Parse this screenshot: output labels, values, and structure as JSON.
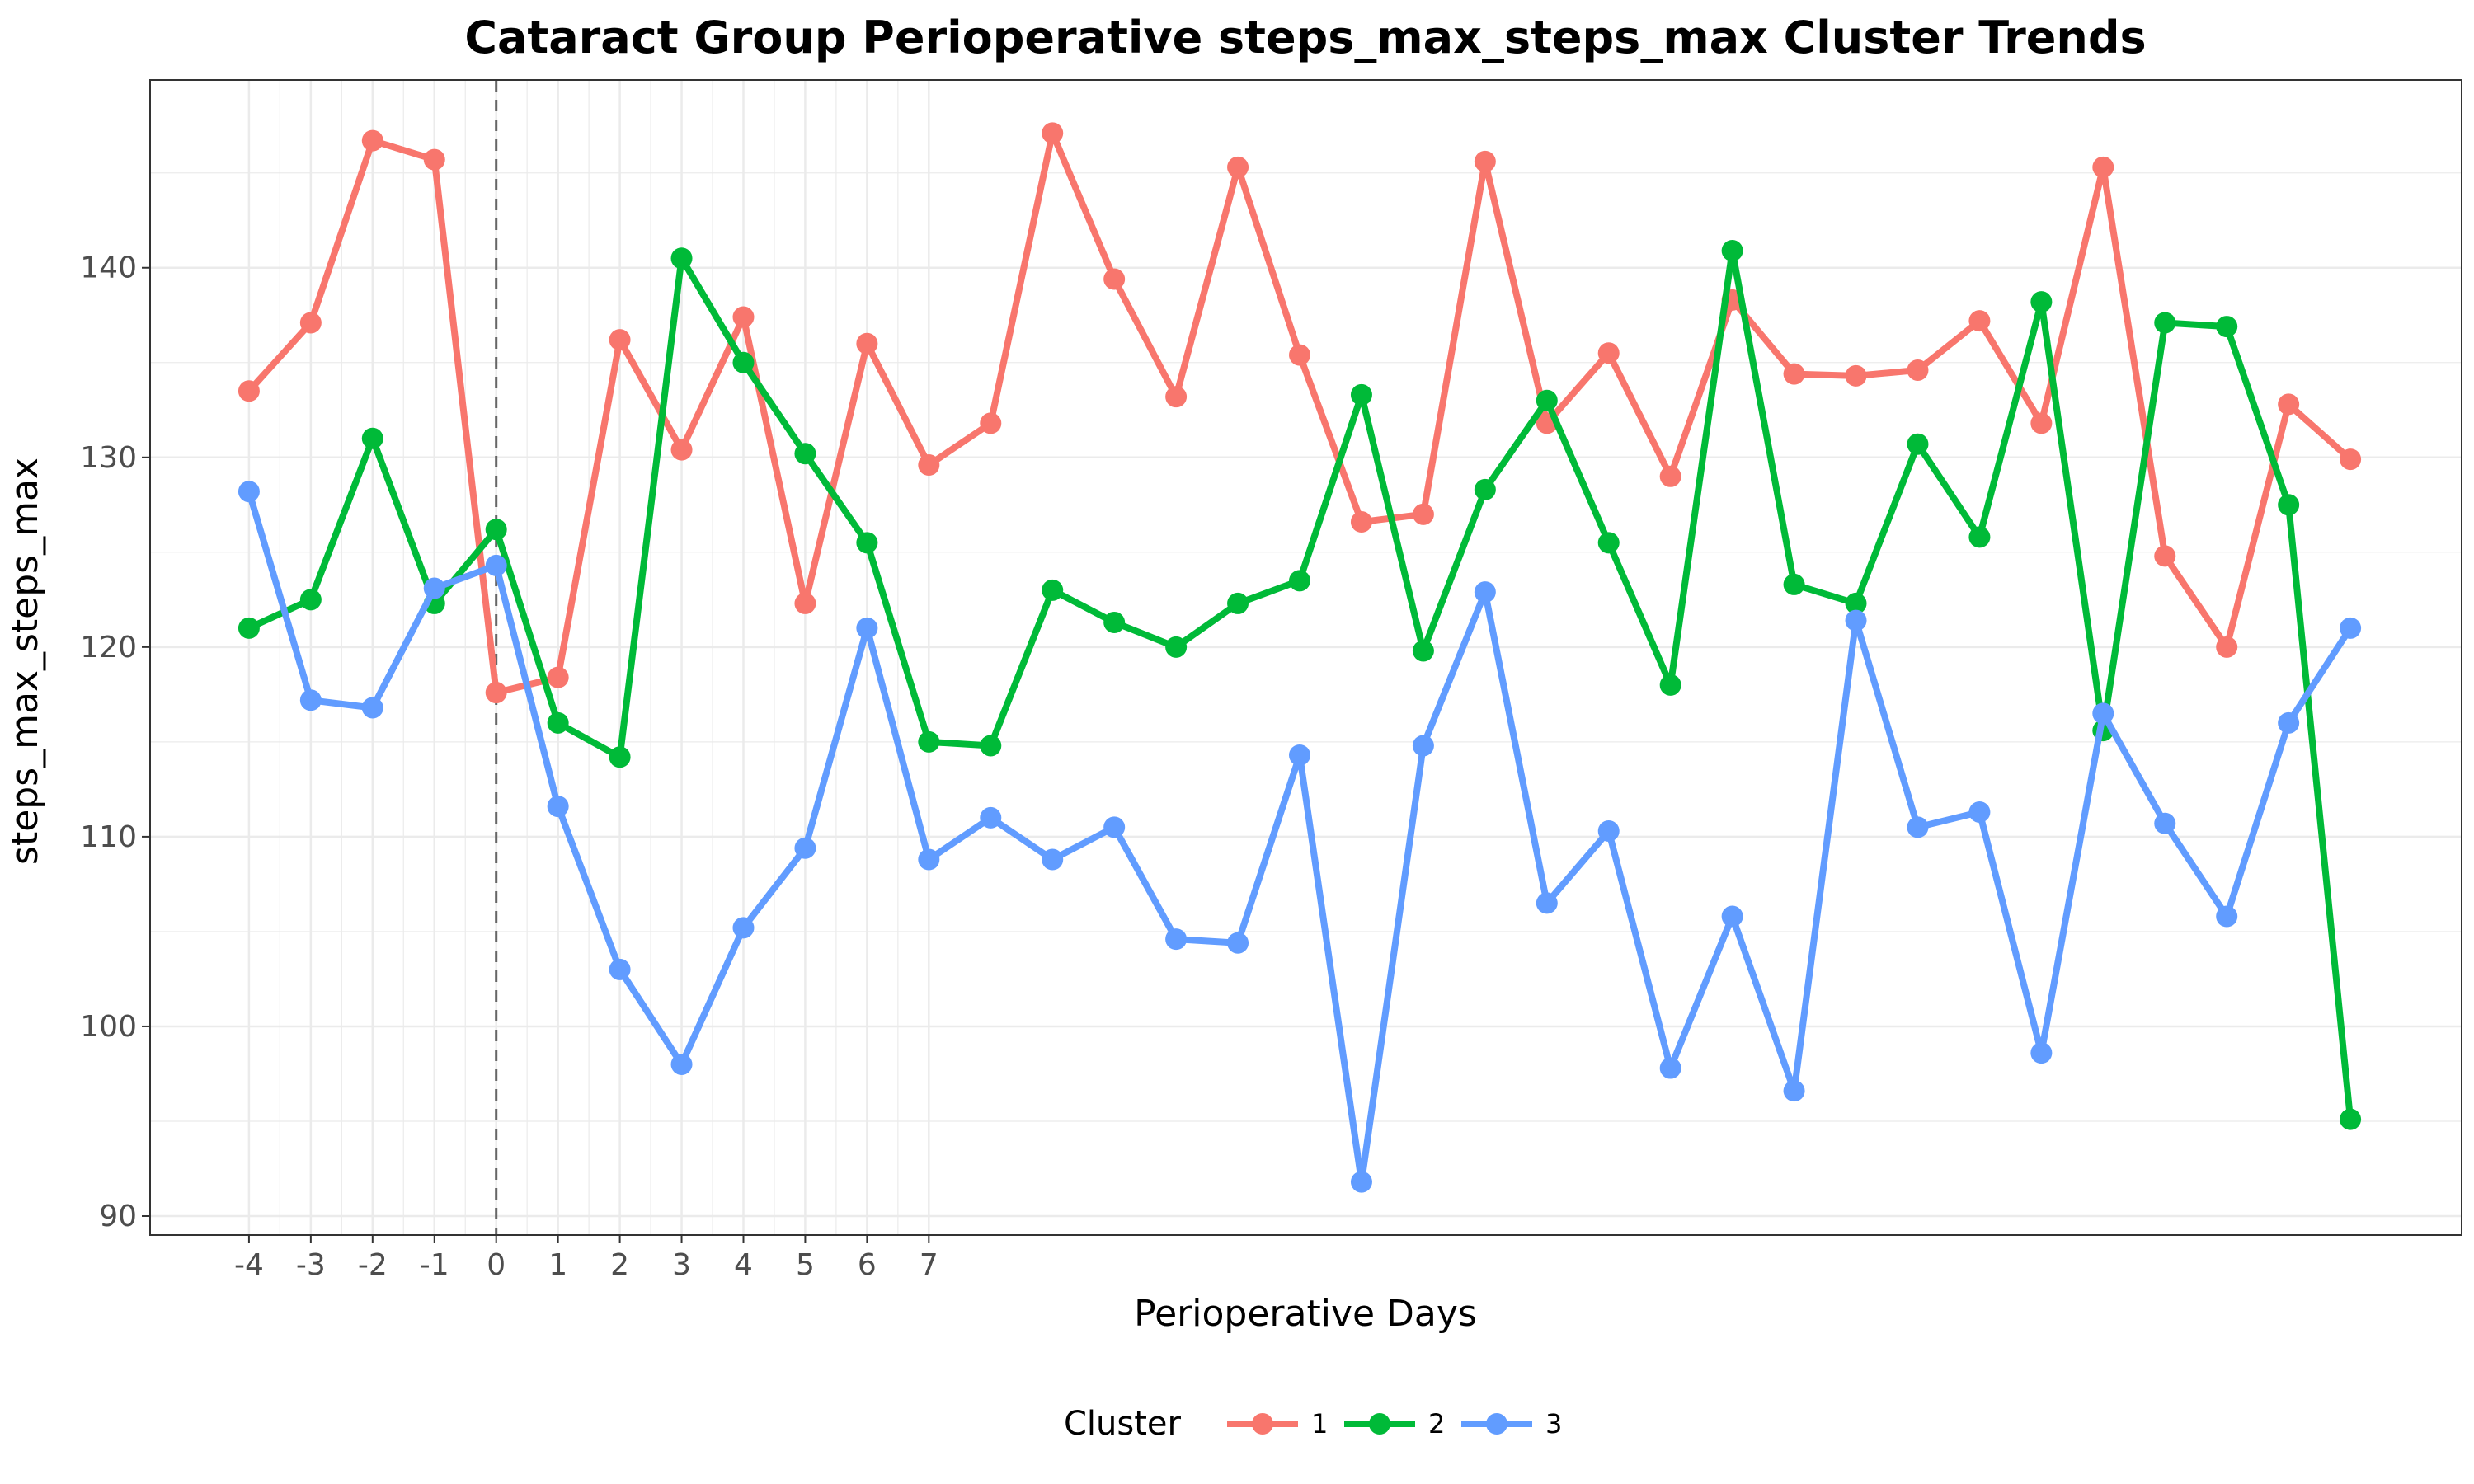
{
  "chart_data": {
    "type": "line",
    "title": "Cataract Group Perioperative steps_max_steps_max Cluster Trends",
    "xlabel": "Perioperative Days",
    "ylabel": "steps_max_steps_max",
    "x_tick_labels": [
      "-4",
      "-3",
      "-2",
      "-1",
      "0",
      "1",
      "2",
      "3",
      "4",
      "5",
      "6",
      "7"
    ],
    "x_tick_values": [
      -4,
      -3,
      -2,
      -1,
      0,
      1,
      2,
      3,
      4,
      5,
      6,
      7
    ],
    "y_ticks": [
      90,
      100,
      110,
      120,
      130,
      140
    ],
    "xlim": [
      -5.6,
      31.8
    ],
    "ylim": [
      89.0,
      149.9
    ],
    "grid": true,
    "reference_line": {
      "x": 0,
      "style": "dashed"
    },
    "legend": {
      "title": "Cluster",
      "position": "bottom"
    },
    "x": [
      -4,
      -3,
      -2,
      -1,
      0,
      1,
      2,
      3,
      4,
      5,
      6,
      7,
      8,
      9,
      10,
      11,
      12,
      13,
      14,
      15,
      16,
      17,
      18,
      19,
      20,
      21,
      22,
      23,
      24,
      25,
      26,
      27,
      28,
      29,
      30
    ],
    "series": [
      {
        "name": "1",
        "color": "#F8766D",
        "values": [
          133.5,
          137.1,
          146.7,
          145.7,
          117.6,
          118.4,
          136.2,
          130.4,
          137.4,
          122.3,
          136.0,
          129.6,
          131.8,
          147.1,
          139.4,
          133.2,
          145.3,
          135.4,
          126.6,
          127.0,
          145.6,
          131.8,
          135.5,
          129.0,
          138.3,
          134.4,
          134.3,
          134.6,
          137.2,
          131.8,
          145.3,
          124.8,
          120.0,
          132.8,
          129.9
        ]
      },
      {
        "name": "2",
        "color": "#00BA38",
        "values": [
          121.0,
          122.5,
          131.0,
          122.3,
          126.2,
          116.0,
          114.2,
          140.5,
          135.0,
          130.2,
          125.5,
          115.0,
          114.8,
          123.0,
          121.3,
          120.0,
          122.3,
          123.5,
          133.3,
          119.8,
          128.3,
          133.0,
          125.5,
          118.0,
          140.9,
          123.3,
          122.3,
          130.7,
          125.8,
          138.2,
          115.6,
          137.1,
          136.9,
          127.5,
          95.1
        ]
      },
      {
        "name": "3",
        "color": "#619CFF",
        "values": [
          128.2,
          117.2,
          116.8,
          123.1,
          124.3,
          111.6,
          103.0,
          98.0,
          105.2,
          109.4,
          121.0,
          108.8,
          111.0,
          108.8,
          110.5,
          104.6,
          104.4,
          114.3,
          91.8,
          114.8,
          122.9,
          106.5,
          110.3,
          97.8,
          105.8,
          96.6,
          121.4,
          110.5,
          111.3,
          98.6,
          116.5,
          110.7,
          105.8,
          116.0,
          121.0
        ]
      }
    ]
  }
}
